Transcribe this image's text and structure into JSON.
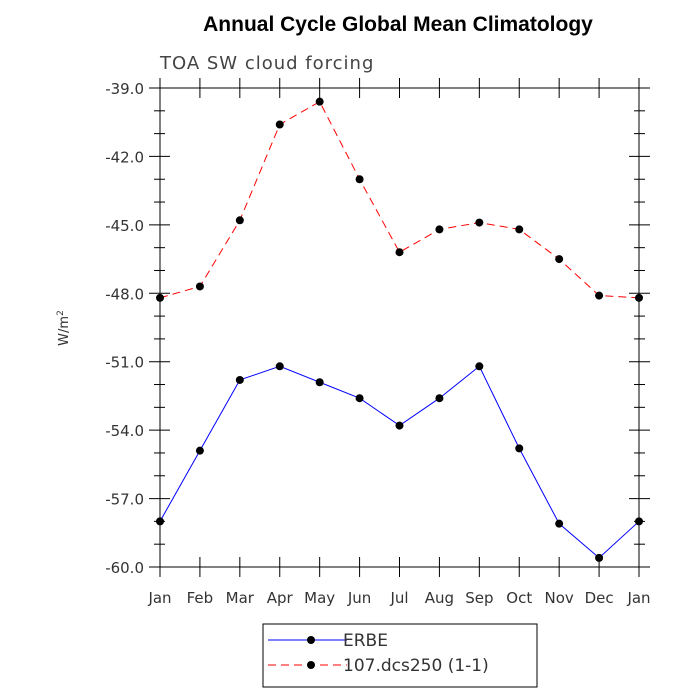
{
  "chart_data": {
    "type": "line",
    "title": "Annual Cycle Global Mean Climatology",
    "subtitle": "TOA SW cloud forcing",
    "ylabel": "W/m",
    "ylabel_superscript": "2",
    "xlabel": "",
    "categories": [
      "Jan",
      "Feb",
      "Mar",
      "Apr",
      "May",
      "Jun",
      "Jul",
      "Aug",
      "Sep",
      "Oct",
      "Nov",
      "Dec",
      "Jan"
    ],
    "ylim": [
      -60.0,
      -39.0
    ],
    "yticks": [
      "-39.0",
      "-42.0",
      "-45.0",
      "-48.0",
      "-51.0",
      "-54.0",
      "-57.0",
      "-60.0"
    ],
    "series": [
      {
        "name": "ERBE",
        "color": "#0000ff",
        "dashed": false,
        "values": [
          -58.0,
          -54.9,
          -51.8,
          -51.2,
          -51.9,
          -52.6,
          -53.8,
          -52.6,
          -51.2,
          -54.8,
          -58.1,
          -59.6,
          -58.0
        ]
      },
      {
        "name": "107.dcs250 (1-1)",
        "color": "#ff0000",
        "dashed": true,
        "values": [
          -48.2,
          -47.7,
          -44.8,
          -40.6,
          -39.6,
          -43.0,
          -46.2,
          -45.2,
          -44.9,
          -45.2,
          -46.5,
          -48.1,
          -48.2
        ]
      }
    ],
    "legend_position": "bottom-center"
  }
}
